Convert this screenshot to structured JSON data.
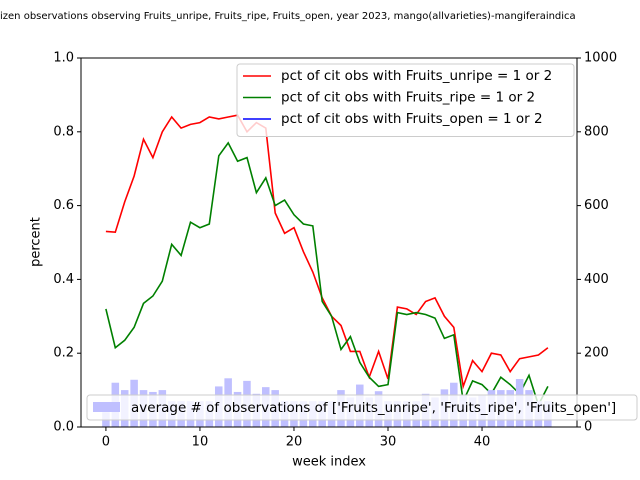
{
  "chart_data": {
    "type": "line",
    "title": "izen observations observing Fruits_unripe, Fruits_ripe, Fruits_open, year 2023, mango(allvarieties)-mangiferaindica",
    "xlabel": "week index",
    "ylabel": "percent",
    "x": [
      0,
      1,
      2,
      3,
      4,
      5,
      6,
      7,
      8,
      9,
      10,
      11,
      12,
      13,
      14,
      15,
      16,
      17,
      18,
      19,
      20,
      21,
      22,
      23,
      24,
      25,
      26,
      27,
      28,
      29,
      30,
      31,
      32,
      33,
      34,
      35,
      36,
      37,
      38,
      39,
      40,
      41,
      42,
      43,
      44,
      45,
      46,
      47
    ],
    "xlim": [
      -2.65,
      50.1
    ],
    "xticks": [
      0,
      10,
      20,
      30,
      40
    ],
    "ylim": [
      0,
      1
    ],
    "yticks": [
      {
        "value": 0,
        "label": "0.0"
      },
      0.2,
      0.4,
      0.6,
      0.8,
      {
        "value": 1,
        "label": "1.0"
      }
    ],
    "y2lim": [
      0,
      1000
    ],
    "y2ticks": [
      0,
      200,
      400,
      600,
      800,
      1000
    ],
    "legend": "upper right",
    "bar_legend": "lower center",
    "series": [
      {
        "name": "pct of cit obs with Fruits_unripe = 1 or 2",
        "type": "line",
        "color": "#ff0000",
        "values": [
          0.53,
          0.528,
          0.61,
          0.68,
          0.78,
          0.73,
          0.8,
          0.84,
          0.81,
          0.82,
          0.825,
          0.84,
          0.835,
          0.84,
          0.845,
          0.8,
          0.825,
          0.81,
          0.58,
          0.525,
          0.54,
          0.475,
          0.42,
          0.35,
          0.3,
          0.275,
          0.205,
          0.205,
          0.135,
          0.205,
          0.13,
          0.325,
          0.32,
          0.305,
          0.34,
          0.35,
          0.3,
          0.27,
          0.11,
          0.18,
          0.15,
          0.2,
          0.195,
          0.15,
          0.185,
          0.19,
          0.195,
          0.215
        ]
      },
      {
        "name": "pct of cit obs with Fruits_ripe = 1 or 2",
        "type": "line",
        "color": "#008000",
        "values": [
          0.32,
          0.215,
          0.235,
          0.27,
          0.335,
          0.355,
          0.395,
          0.495,
          0.465,
          0.555,
          0.54,
          0.55,
          0.735,
          0.77,
          0.72,
          0.73,
          0.635,
          0.675,
          0.6,
          0.615,
          0.575,
          0.55,
          0.545,
          0.34,
          0.3,
          0.21,
          0.245,
          0.175,
          0.135,
          0.11,
          0.115,
          0.31,
          0.305,
          0.31,
          0.305,
          0.295,
          0.24,
          0.25,
          0.07,
          0.125,
          0.115,
          0.09,
          0.135,
          0.115,
          0.09,
          0.14,
          0.06,
          0.11
        ]
      },
      {
        "name": "pct of cit obs with Fruits_open = 1 or 2",
        "type": "line",
        "color": "#0000ff",
        "values": [
          null,
          null,
          null,
          null,
          null,
          null,
          null,
          null,
          null,
          null,
          null,
          null,
          null,
          null,
          null,
          null,
          null,
          null,
          null,
          null,
          null,
          null,
          null,
          null,
          null,
          null,
          null,
          null,
          null,
          null,
          null,
          null,
          null,
          null,
          null,
          null,
          null,
          null,
          null,
          null,
          null,
          null,
          null,
          null,
          null,
          null,
          null,
          null
        ]
      },
      {
        "name": "average # of observations of ['Fruits_unripe', 'Fruits_ripe', 'Fruits_open']",
        "type": "bar",
        "axis": "y2",
        "color": "#bfbfff",
        "values": [
          40,
          120,
          100,
          128,
          100,
          95,
          100,
          70,
          70,
          70,
          70,
          70,
          110,
          132,
          95,
          125,
          90,
          108,
          100,
          70,
          70,
          70,
          70,
          70,
          70,
          100,
          80,
          115,
          80,
          97,
          70,
          70,
          70,
          70,
          90,
          80,
          102,
          120,
          85,
          80,
          85,
          100,
          100,
          100,
          130,
          100,
          70,
          70
        ]
      }
    ]
  }
}
